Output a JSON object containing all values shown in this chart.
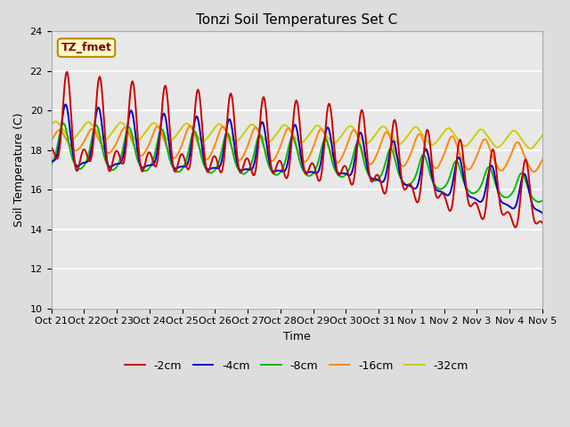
{
  "title": "Tonzi Soil Temperatures Set C",
  "xlabel": "Time",
  "ylabel": "Soil Temperature (C)",
  "ylim": [
    10,
    24
  ],
  "yticks": [
    10,
    12,
    14,
    16,
    18,
    20,
    22,
    24
  ],
  "xlim_labels": [
    "Oct 21",
    "Oct 22",
    "Oct 23",
    "Oct 24",
    "Oct 25",
    "Oct 26",
    "Oct 27",
    "Oct 28",
    "Oct 29",
    "Oct 30",
    "Oct 31",
    "Nov 1",
    "Nov 2",
    "Nov 3",
    "Nov 4",
    "Nov 5"
  ],
  "annotation_text": "TZ_fmet",
  "annotation_bbox_facecolor": "#ffffcc",
  "annotation_bbox_edgecolor": "#bb8800",
  "annotation_text_color": "#880000",
  "legend_labels": [
    "-2cm",
    "-4cm",
    "-8cm",
    "-16cm",
    "-32cm"
  ],
  "line_colors": [
    "#cc0000",
    "#0000cc",
    "#00bb00",
    "#ff8800",
    "#cccc00"
  ],
  "fig_bg_color": "#dddddd",
  "plot_bg_color": "#e8e8e8",
  "grid_color": "#ffffff",
  "title_fontsize": 11,
  "label_fontsize": 9,
  "tick_fontsize": 8
}
